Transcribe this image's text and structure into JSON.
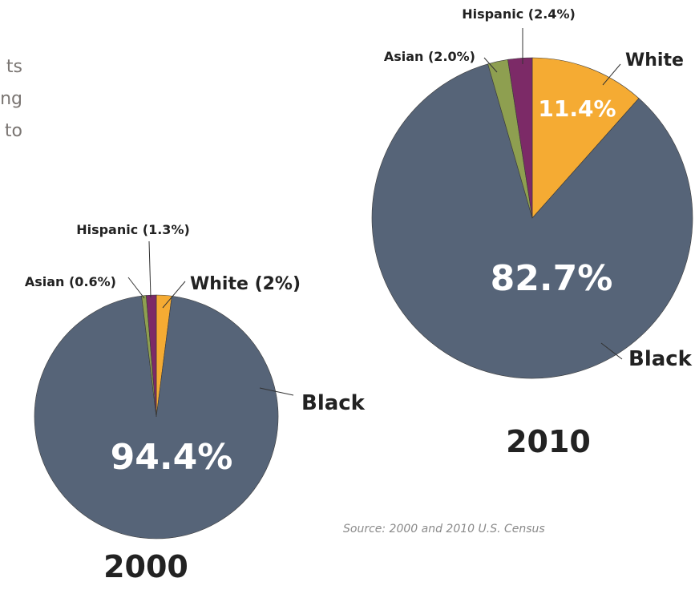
{
  "intro_fragments": [
    "ts",
    "ng",
    "to"
  ],
  "source": "Source: 2000 and 2010 U.S. Census",
  "colors": {
    "black": "#566478",
    "white": "#f5ab33",
    "hispanic": "#7c2a67",
    "asian": "#8e9f50",
    "pie_text": "#ffffff",
    "label_text": "#222222"
  },
  "chart_data": [
    {
      "type": "pie",
      "year_label": "2000",
      "slices": [
        {
          "key": "white",
          "label": "White (2%)",
          "value": 2.0
        },
        {
          "key": "black",
          "label": "Black",
          "value": 94.4
        },
        {
          "key": "asian",
          "label": "Asian (0.6%)",
          "value": 0.6
        },
        {
          "key": "hispanic",
          "label": "Hispanic (1.3%)",
          "value": 1.3
        }
      ],
      "in_slice_labels": [
        {
          "key": "black",
          "text": "94.4%"
        }
      ]
    },
    {
      "type": "pie",
      "year_label": "2010",
      "slices": [
        {
          "key": "white",
          "label": "White",
          "value": 11.4
        },
        {
          "key": "black",
          "label": "Black",
          "value": 82.7
        },
        {
          "key": "asian",
          "label": "Asian (2.0%)",
          "value": 2.0
        },
        {
          "key": "hispanic",
          "label": "Hispanic (2.4%)",
          "value": 2.4
        }
      ],
      "in_slice_labels": [
        {
          "key": "white",
          "text": "11.4%"
        },
        {
          "key": "black",
          "text": "82.7%"
        }
      ]
    }
  ]
}
